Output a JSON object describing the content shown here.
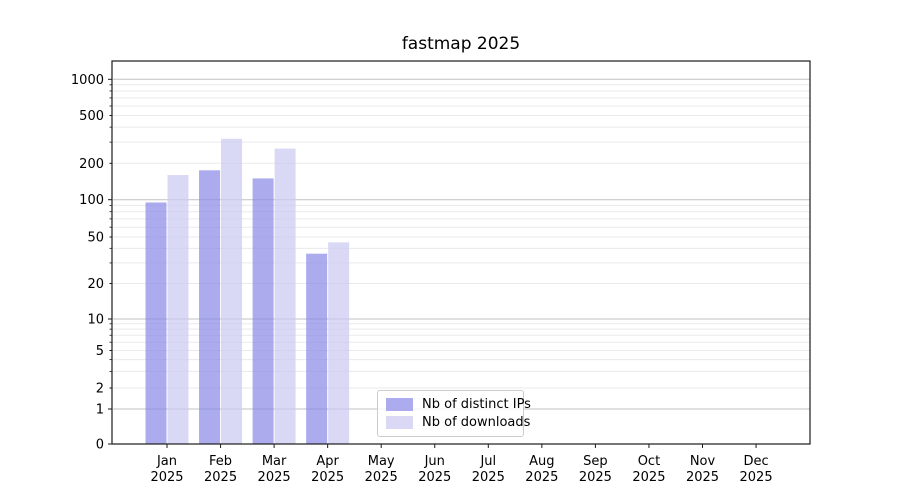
{
  "chart_data": {
    "type": "bar",
    "title": "fastmap 2025",
    "xlabel": "",
    "ylabel": "",
    "year": "2025",
    "categories": [
      "Jan",
      "Feb",
      "Mar",
      "Apr",
      "May",
      "Jun",
      "Jul",
      "Aug",
      "Sep",
      "Oct",
      "Nov",
      "Dec"
    ],
    "series": [
      {
        "name": "Nb of distinct IPs",
        "color": "#8a8ae8",
        "fill_opacity": 0.72,
        "values": [
          95,
          175,
          150,
          36,
          0,
          0,
          0,
          0,
          0,
          0,
          0,
          0
        ]
      },
      {
        "name": "Nb of downloads",
        "color": "#cacaf2",
        "fill_opacity": 0.72,
        "values": [
          160,
          320,
          265,
          45,
          0,
          0,
          0,
          0,
          0,
          0,
          0,
          0
        ]
      }
    ],
    "yscale": "symlog",
    "yticks": [
      0,
      1,
      2,
      5,
      10,
      20,
      50,
      100,
      200,
      500,
      1000
    ],
    "ylim": [
      0,
      1400
    ],
    "grid": "both",
    "legend_position": "lower-center-inside",
    "colors": {
      "major_grid": "#c2c2c2",
      "minor_grid": "#eaeaea",
      "axis": "#1a1a1a",
      "tick_text": "#000000"
    }
  }
}
